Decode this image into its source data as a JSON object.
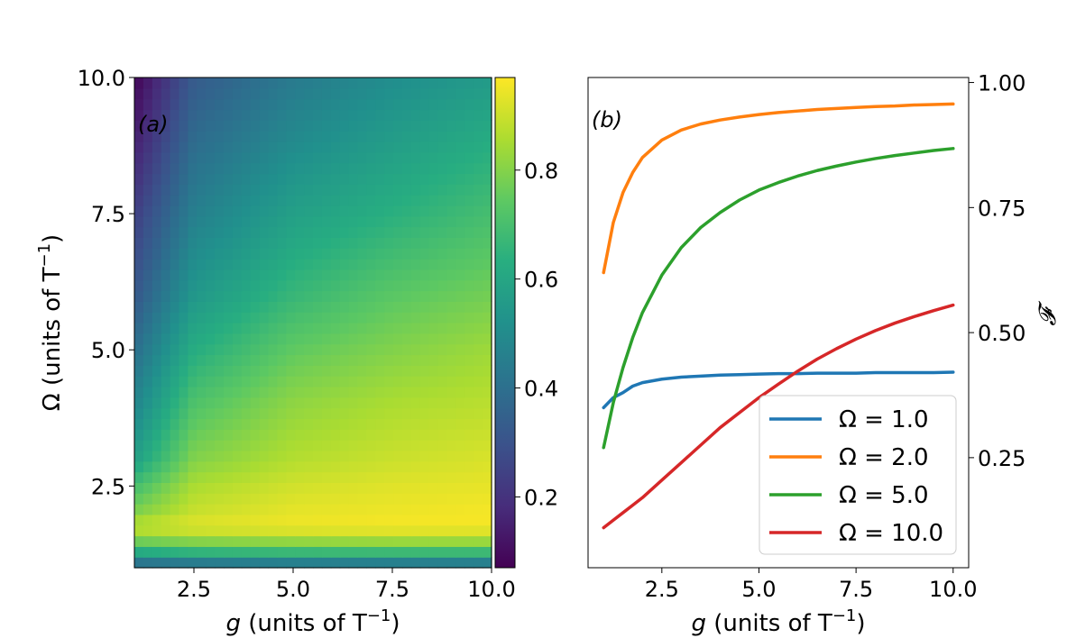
{
  "chart_data": [
    {
      "type": "heatmap",
      "panel_label": "(a)",
      "xlabel_var": "g",
      "xlabel_rest": " (units of T",
      "xlabel_exp": "−1",
      "xlabel_close": ")",
      "ylabel_text": "Ω (units of T",
      "ylabel_exp": "−1",
      "ylabel_close": ")",
      "xlim": [
        1.0,
        10.0
      ],
      "ylim": [
        1.0,
        10.0
      ],
      "xticks": [
        "2.5",
        "5.0",
        "7.5",
        "10.0"
      ],
      "xtick_values": [
        2.5,
        5.0,
        7.5,
        10.0
      ],
      "yticks": [
        "2.5",
        "5.0",
        "7.5",
        "10.0"
      ],
      "ytick_values": [
        2.5,
        5.0,
        7.5,
        10.0
      ],
      "colormap": "viridis",
      "colorbar_range": [
        0.07,
        0.97
      ],
      "colorbar_ticks": [
        "0.2",
        "0.4",
        "0.6",
        "0.8"
      ],
      "colorbar_tick_values": [
        0.2,
        0.4,
        0.6,
        0.8
      ],
      "grid_x": [
        1.0,
        2.5,
        5.0,
        7.5,
        10.0
      ],
      "grid_y": [
        1.0,
        1.2,
        1.4,
        1.6,
        1.8,
        2.0,
        2.5,
        3.0,
        4.0,
        5.0,
        6.0,
        7.5,
        9.0,
        10.0
      ],
      "z": [
        [
          0.3,
          0.32,
          0.33,
          0.33,
          0.33
        ],
        [
          0.55,
          0.58,
          0.6,
          0.6,
          0.6
        ],
        [
          0.7,
          0.74,
          0.76,
          0.77,
          0.77
        ],
        [
          0.85,
          0.88,
          0.9,
          0.91,
          0.91
        ],
        [
          0.88,
          0.93,
          0.95,
          0.96,
          0.96
        ],
        [
          0.8,
          0.9,
          0.94,
          0.95,
          0.96
        ],
        [
          0.7,
          0.86,
          0.91,
          0.93,
          0.94
        ],
        [
          0.58,
          0.8,
          0.87,
          0.9,
          0.92
        ],
        [
          0.48,
          0.72,
          0.82,
          0.86,
          0.88
        ],
        [
          0.4,
          0.63,
          0.75,
          0.8,
          0.84
        ],
        [
          0.32,
          0.55,
          0.67,
          0.74,
          0.78
        ],
        [
          0.24,
          0.46,
          0.58,
          0.64,
          0.7
        ],
        [
          0.14,
          0.38,
          0.49,
          0.56,
          0.62
        ],
        [
          0.08,
          0.33,
          0.44,
          0.51,
          0.56
        ]
      ]
    },
    {
      "type": "line",
      "panel_label": "(b)",
      "xlabel_var": "g",
      "xlabel_rest": " (units of T",
      "xlabel_exp": "−1",
      "xlabel_close": ")",
      "ylabel": "𝓕",
      "xlim": [
        0.6,
        10.4
      ],
      "ylim": [
        0.03,
        1.01
      ],
      "xticks": [
        "2.5",
        "5.0",
        "7.5",
        "10.0"
      ],
      "xtick_values": [
        2.5,
        5.0,
        7.5,
        10.0
      ],
      "yticks": [
        "0.25",
        "0.50",
        "0.75",
        "1.00"
      ],
      "ytick_values": [
        0.25,
        0.5,
        0.75,
        1.0
      ],
      "yaxis_side": "right",
      "legend_position": "bottom-right",
      "x": [
        1.0,
        1.25,
        1.5,
        1.75,
        2.0,
        2.5,
        3.0,
        3.5,
        4.0,
        4.5,
        5.0,
        5.5,
        6.0,
        6.5,
        7.0,
        7.5,
        8.0,
        8.5,
        9.0,
        9.5,
        10.0
      ],
      "series": [
        {
          "name": "Ω = 1.0",
          "color": "#1f77b4",
          "values": [
            0.35,
            0.37,
            0.38,
            0.393,
            0.4,
            0.407,
            0.411,
            0.413,
            0.415,
            0.416,
            0.417,
            0.418,
            0.418,
            0.419,
            0.419,
            0.419,
            0.42,
            0.42,
            0.42,
            0.42,
            0.421
          ]
        },
        {
          "name": "Ω = 2.0",
          "color": "#ff7f0e",
          "values": [
            0.62,
            0.72,
            0.78,
            0.82,
            0.85,
            0.885,
            0.905,
            0.917,
            0.925,
            0.931,
            0.936,
            0.94,
            0.943,
            0.946,
            0.948,
            0.95,
            0.952,
            0.953,
            0.955,
            0.956,
            0.957
          ]
        },
        {
          "name": "Ω = 5.0",
          "color": "#2ca02c",
          "values": [
            0.27,
            0.36,
            0.43,
            0.49,
            0.54,
            0.615,
            0.67,
            0.71,
            0.74,
            0.765,
            0.785,
            0.8,
            0.813,
            0.824,
            0.833,
            0.841,
            0.848,
            0.854,
            0.859,
            0.864,
            0.868
          ]
        },
        {
          "name": "Ω = 10.0",
          "color": "#d62728",
          "values": [
            0.11,
            0.125,
            0.14,
            0.155,
            0.17,
            0.205,
            0.24,
            0.275,
            0.31,
            0.34,
            0.37,
            0.397,
            0.423,
            0.447,
            0.468,
            0.487,
            0.504,
            0.519,
            0.532,
            0.544,
            0.555
          ]
        }
      ]
    }
  ]
}
